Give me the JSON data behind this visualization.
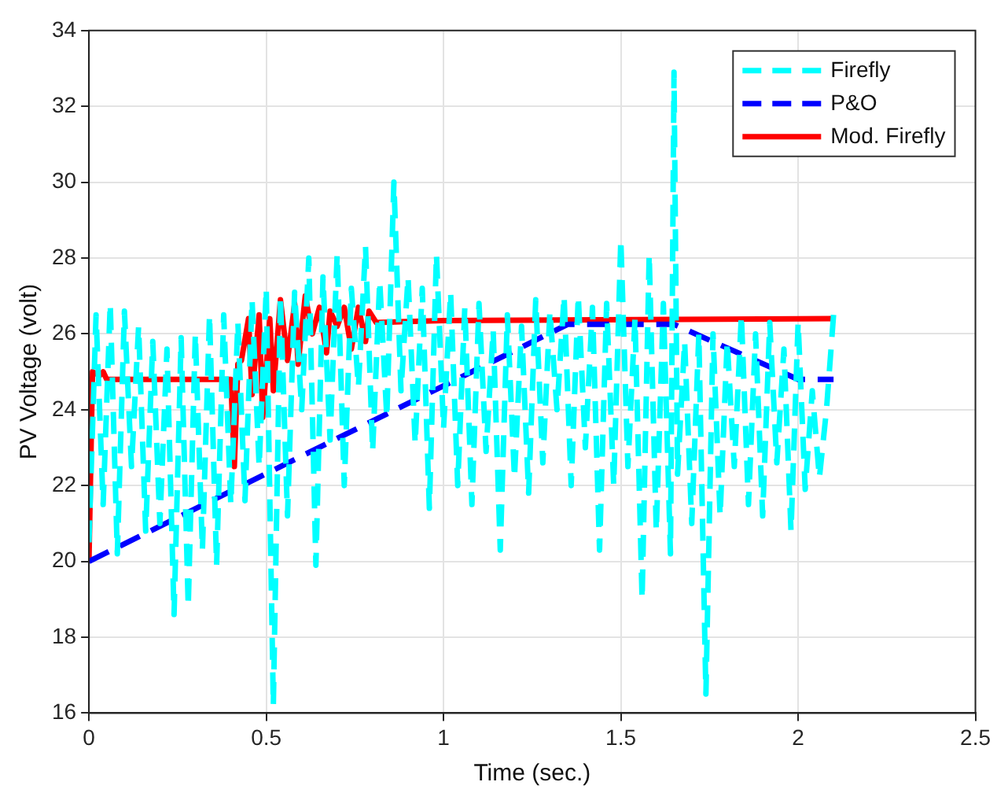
{
  "chart_data": {
    "type": "line",
    "xlabel": "Time (sec.)",
    "ylabel": "PV Voltage (volt)",
    "xlim": [
      0,
      2.5
    ],
    "xticks": [
      0,
      0.5,
      1,
      1.5,
      2,
      2.5
    ],
    "ylim": [
      16,
      34
    ],
    "yticks": [
      16,
      18,
      20,
      22,
      24,
      26,
      28,
      30,
      32,
      34
    ],
    "grid": true,
    "legend": "top right",
    "marker": "none",
    "series": [
      {
        "name": "Firefly",
        "color": "#00ffff",
        "line_style": "dashed",
        "x": [
          0,
          0.02,
          0.04,
          0.06,
          0.08,
          0.1,
          0.12,
          0.14,
          0.16,
          0.18,
          0.2,
          0.22,
          0.24,
          0.26,
          0.28,
          0.3,
          0.32,
          0.34,
          0.36,
          0.38,
          0.4,
          0.42,
          0.44,
          0.46,
          0.48,
          0.5,
          0.52,
          0.54,
          0.56,
          0.58,
          0.6,
          0.62,
          0.64,
          0.66,
          0.68,
          0.7,
          0.72,
          0.74,
          0.76,
          0.78,
          0.8,
          0.82,
          0.84,
          0.86,
          0.88,
          0.9,
          0.92,
          0.94,
          0.96,
          0.98,
          1,
          1.02,
          1.04,
          1.06,
          1.08,
          1.1,
          1.12,
          1.14,
          1.16,
          1.18,
          1.2,
          1.22,
          1.24,
          1.26,
          1.28,
          1.3,
          1.32,
          1.34,
          1.36,
          1.38,
          1.4,
          1.42,
          1.44,
          1.46,
          1.48,
          1.5,
          1.52,
          1.54,
          1.56,
          1.58,
          1.6,
          1.62,
          1.64,
          1.65,
          1.66,
          1.68,
          1.7,
          1.72,
          1.74,
          1.76,
          1.78,
          1.8,
          1.82,
          1.84,
          1.86,
          1.88,
          1.9,
          1.92,
          1.94,
          1.96,
          1.98,
          2,
          2.02,
          2.04,
          2.06,
          2.08,
          2.1
        ],
        "values": [
          20.5,
          26.5,
          21.5,
          26.8,
          20.2,
          26.6,
          22.5,
          26.2,
          20.8,
          25.8,
          21,
          25.6,
          18.6,
          25.9,
          18.8,
          26,
          20.3,
          26.5,
          19.9,
          26.5,
          21.5,
          26.3,
          21.6,
          26.9,
          22.5,
          27.2,
          16.2,
          27,
          21.2,
          27.1,
          24,
          28,
          19.9,
          27.5,
          23.2,
          28.1,
          22,
          27.2,
          24.6,
          28.3,
          22.9,
          27.4,
          23.8,
          30,
          24.5,
          27.5,
          23.1,
          27.2,
          21.4,
          28.1,
          23.5,
          27.1,
          22,
          26.7,
          21.5,
          26.8,
          22.9,
          26.1,
          20.3,
          26.5,
          22.2,
          26.2,
          21.8,
          26.9,
          22.6,
          26.6,
          24,
          27,
          22,
          27,
          23,
          26.7,
          20.3,
          26.8,
          22,
          28.5,
          22.5,
          26.4,
          19,
          28.1,
          20.8,
          26.8,
          20.2,
          32.9,
          22.3,
          25.8,
          21,
          26,
          16.5,
          26,
          21.2,
          25.8,
          22.5,
          26.5,
          21.5,
          26,
          21.2,
          26.3,
          22.6,
          25.6,
          20.8,
          26.3,
          21.9,
          24.5,
          22.2,
          24,
          26.5
        ]
      },
      {
        "name": "P&O",
        "color": "#0000ff",
        "line_style": "dashed",
        "x": [
          0,
          1.35,
          1.65,
          2.0,
          2.1
        ],
        "values": [
          20,
          26.25,
          26.25,
          24.8,
          24.8
        ]
      },
      {
        "name": "Mod. Firefly",
        "color": "#ff0000",
        "line_style": "solid",
        "x": [
          0,
          0.01,
          0.03,
          0.04,
          0.05,
          0.4,
          0.41,
          0.42,
          0.43,
          0.45,
          0.46,
          0.48,
          0.49,
          0.51,
          0.52,
          0.54,
          0.56,
          0.58,
          0.59,
          0.61,
          0.63,
          0.65,
          0.67,
          0.68,
          0.7,
          0.72,
          0.74,
          0.76,
          0.78,
          0.79,
          0.81,
          1,
          2.1
        ],
        "values": [
          20,
          25,
          24.9,
          25,
          24.8,
          24.8,
          22.5,
          25.2,
          25.3,
          26.4,
          24.4,
          26.5,
          23.8,
          26.4,
          24.5,
          26.9,
          25.3,
          26.8,
          25.2,
          27,
          26,
          26.7,
          25.5,
          26.6,
          26.2,
          26.7,
          25.6,
          26.7,
          25.8,
          26.6,
          26.3,
          26.35,
          26.4
        ]
      }
    ]
  }
}
